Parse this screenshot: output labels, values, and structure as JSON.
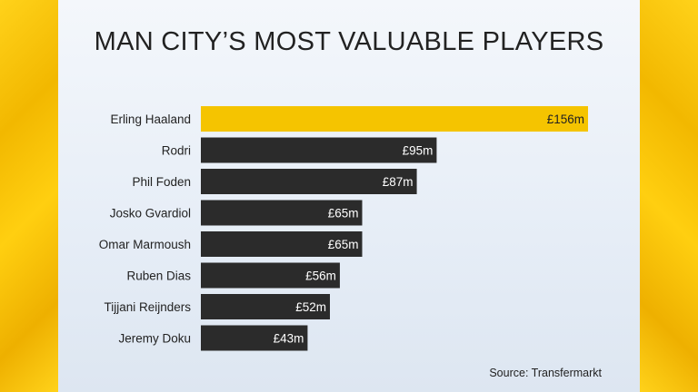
{
  "title": "MAN CITY’S MOST VALUABLE PLAYERS",
  "source": "Source: Transfermarkt",
  "colors": {
    "highlight": "#f5c400",
    "bar": "#2b2b2b",
    "label": "#222222",
    "value_on_dark": "#ffffff",
    "value_on_highlight": "#222222"
  },
  "chart_data": {
    "type": "bar",
    "orientation": "horizontal",
    "title": "MAN CITY’S MOST VALUABLE PLAYERS",
    "xlabel": "",
    "ylabel": "",
    "unit_prefix": "£",
    "unit_suffix": "m",
    "xlim": [
      0,
      156
    ],
    "grid": false,
    "highlight_index": 0,
    "categories": [
      "Erling Haaland",
      "Rodri",
      "Phil Foden",
      "Josko Gvardiol",
      "Omar Marmoush",
      "Ruben Dias",
      "Tijjani Reijnders",
      "Jeremy Doku"
    ],
    "values": [
      156,
      95,
      87,
      65,
      65,
      56,
      52,
      43
    ],
    "value_labels": [
      "£156m",
      "£95m",
      "£87m",
      "£65m",
      "£65m",
      "£56m",
      "£52m",
      "£43m"
    ]
  }
}
